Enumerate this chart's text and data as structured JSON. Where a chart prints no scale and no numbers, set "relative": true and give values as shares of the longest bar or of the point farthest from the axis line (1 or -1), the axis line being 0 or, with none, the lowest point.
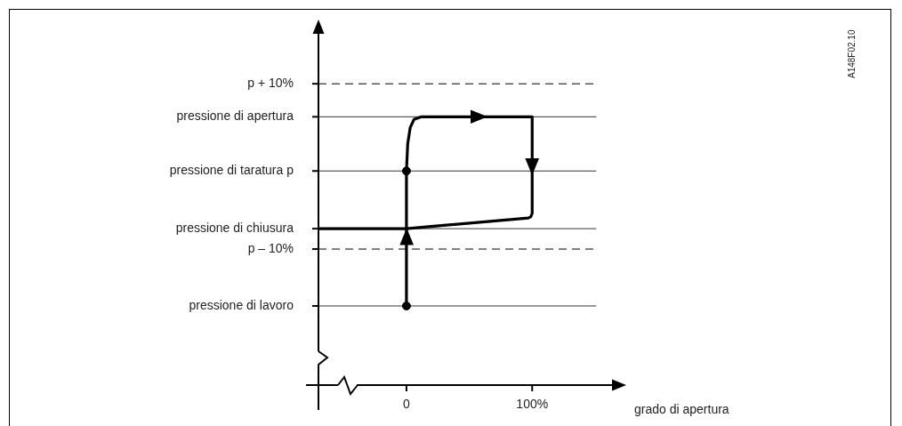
{
  "chart_data": {
    "type": "line",
    "xlabel": "grado di apertura",
    "relative": true,
    "xlim": [
      -70,
      172
    ],
    "xticks": [
      0,
      {
        "value": 100,
        "label": "100%"
      }
    ],
    "grid": false,
    "legend": false,
    "annotations": [
      "A148F02.10"
    ],
    "series": [
      {
        "type": "line",
        "marker": "none",
        "color": "#000000",
        "x": [
          0,
          0,
          1,
          3,
          6,
          12,
          100,
          100,
          99,
          97,
          0,
          -69
        ],
        "values": [
          0.295,
          0.798,
          0.9,
          0.96,
          0.99,
          1,
          1,
          0.64,
          0.628,
          0.623,
          0.583,
          0.583
        ]
      },
      {
        "type": "scatter",
        "marker": "circle",
        "color": "#000000",
        "x": [
          0,
          0
        ],
        "values": [
          0.295,
          0.798
        ]
      }
    ],
    "ref_lines": [
      {
        "axis": "y",
        "value": 1.123,
        "label": "p + 10%",
        "line_style": "dashed"
      },
      {
        "axis": "y",
        "value": 1,
        "label": "pressione di apertura",
        "line_style": "solid"
      },
      {
        "axis": "y",
        "value": 0.798,
        "label": "pressione di taratura p",
        "line_style": "solid"
      },
      {
        "axis": "y",
        "value": 0.583,
        "label": "pressione di chiusura",
        "line_style": "solid"
      },
      {
        "axis": "y",
        "value": 0.507,
        "label": "p – 10%",
        "line_style": "dashed"
      },
      {
        "axis": "y",
        "value": 0.295,
        "label": "pressione di lavoro",
        "line_style": "solid"
      }
    ]
  }
}
